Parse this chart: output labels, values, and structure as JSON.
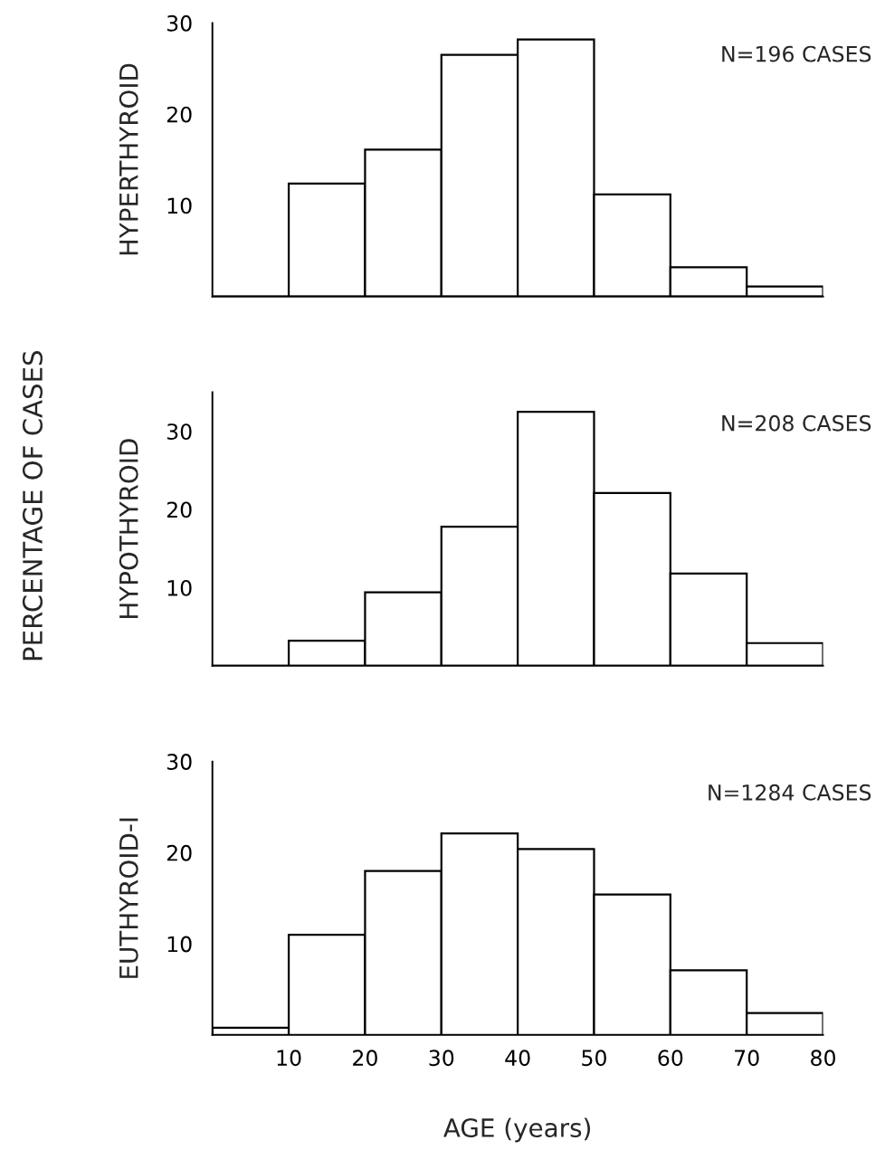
{
  "chart_data": [
    {
      "type": "histogram",
      "ylabel": "HYPERTHYROID",
      "annotations": [
        "PERCENTAGE OF CASES",
        "N=196 CASES"
      ],
      "bins": [
        0,
        10,
        20,
        30,
        40,
        50,
        60,
        70,
        80
      ],
      "values": [
        0,
        12.4,
        16.1,
        26.5,
        28.2,
        11.2,
        3.2,
        1.1
      ],
      "color": "#000000",
      "xlim": [
        0,
        80
      ],
      "xticks": [
        10,
        20,
        30,
        40,
        50,
        60,
        70,
        80
      ],
      "ylim": [
        0,
        30
      ],
      "yticks": [
        10,
        20,
        30
      ],
      "tick_labels": "y",
      "grid": false
    },
    {
      "type": "histogram",
      "ylabel": "HYPOTHYROID",
      "annotations": [
        "N=208 CASES"
      ],
      "bins": [
        0,
        10,
        20,
        30,
        40,
        50,
        60,
        70,
        80
      ],
      "values": [
        0,
        3.2,
        9.4,
        17.8,
        32.5,
        22.1,
        11.8,
        2.9
      ],
      "color": "#000000",
      "xlim": [
        0,
        80
      ],
      "xticks": [
        10,
        20,
        30,
        40,
        50,
        60,
        70,
        80
      ],
      "ylim": [
        0,
        35
      ],
      "yticks": [
        10,
        20,
        30
      ],
      "tick_labels": "y",
      "grid": false
    },
    {
      "type": "histogram",
      "ylabel": "EUTHYROID-I",
      "xlabel": "AGE (years)",
      "annotations": [
        "N=1284 CASES"
      ],
      "bins": [
        0,
        10,
        20,
        30,
        40,
        50,
        60,
        70,
        80
      ],
      "values": [
        0.8,
        11,
        18,
        22.1,
        20.4,
        15.4,
        7.1,
        2.4
      ],
      "color": "#000000",
      "xlim": [
        0,
        80
      ],
      "xticks": [
        10,
        20,
        30,
        40,
        50,
        60,
        70,
        80
      ],
      "ylim": [
        0,
        30
      ],
      "yticks": [
        10,
        20,
        30
      ],
      "grid": false
    }
  ]
}
